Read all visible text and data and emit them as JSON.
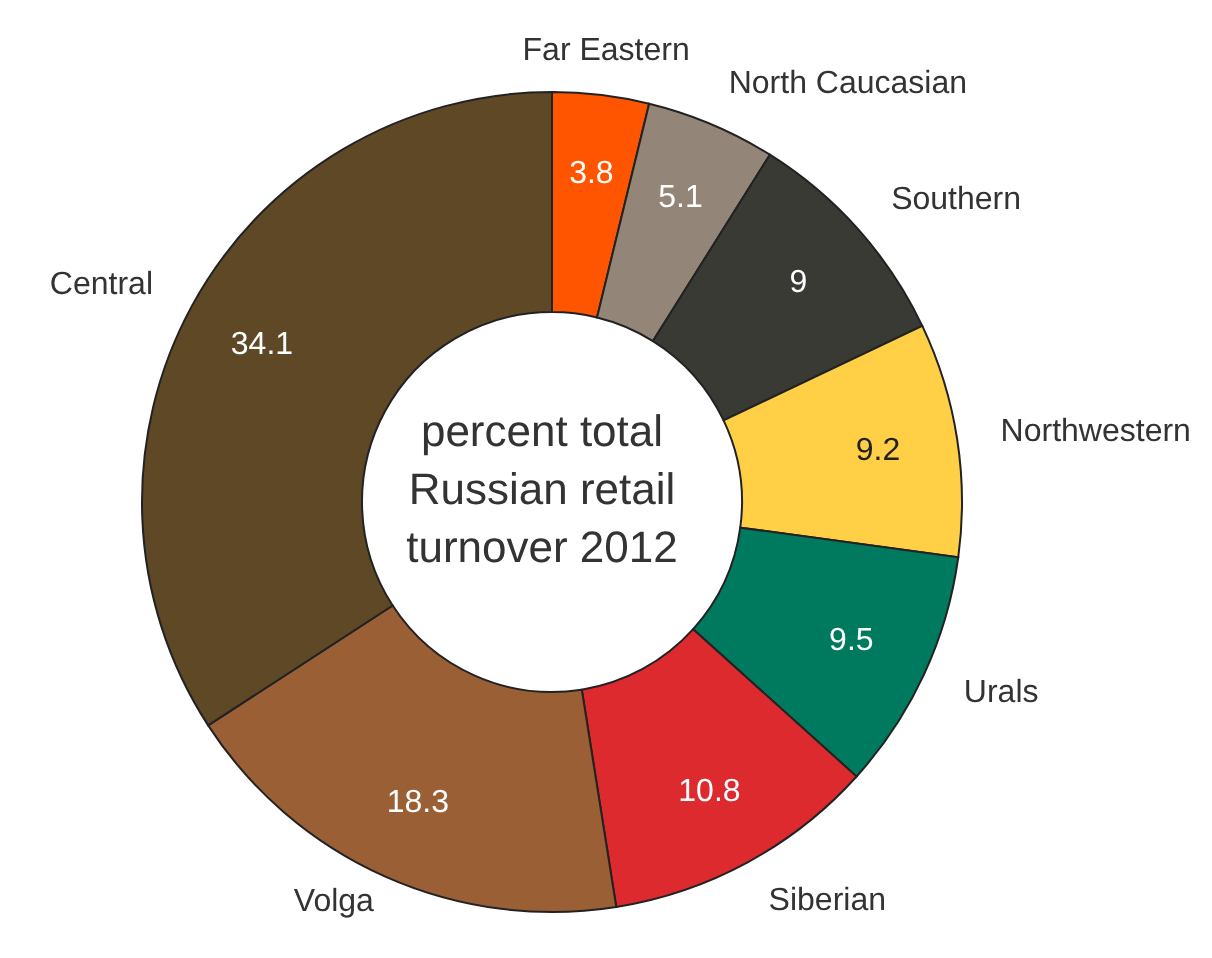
{
  "chart_data": {
    "type": "donut",
    "title": "percent total Russian retail turnover 2012",
    "categories": [
      "Far Eastern",
      "North Caucasian",
      "Southern",
      "Northwestern",
      "Urals",
      "Siberian",
      "Volga",
      "Central"
    ],
    "values": [
      3.8,
      5.1,
      9,
      9.2,
      9.5,
      10.8,
      18.3,
      34.1
    ],
    "colors": [
      "#ff5500",
      "#948579",
      "#3a3a35",
      "#ffd045",
      "#007a5e",
      "#dc2a2e",
      "#9a5f35",
      "#5f4826"
    ],
    "data_labels": true,
    "legend": false
  }
}
